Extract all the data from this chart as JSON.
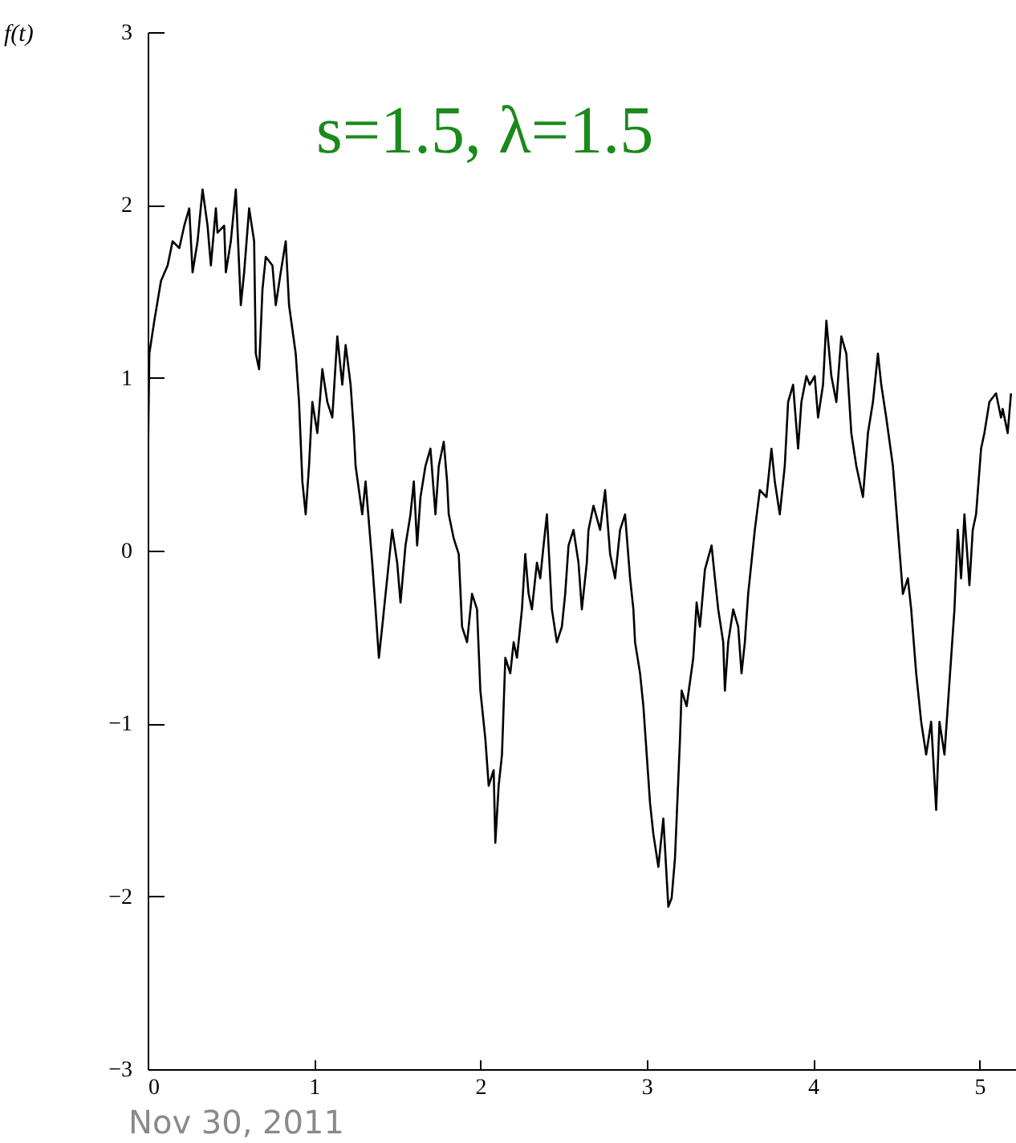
{
  "chart_data": {
    "type": "line",
    "title": "s=1.5, λ=1.5",
    "ylabel": "f(t)",
    "annotations": [
      "Nov 30, 2011"
    ],
    "xlim": [
      0,
      5.22
    ],
    "ylim": [
      -3,
      3
    ],
    "xticks": [
      0,
      1,
      2,
      3,
      4,
      5
    ],
    "yticks": [
      -3,
      -2,
      -1,
      0,
      1,
      2,
      3
    ],
    "x": [
      0,
      0.01,
      0.04,
      0.08,
      0.12,
      0.15,
      0.19,
      0.22,
      0.25,
      0.27,
      0.3,
      0.33,
      0.36,
      0.38,
      0.41,
      0.42,
      0.46,
      0.47,
      0.5,
      0.53,
      0.56,
      0.58,
      0.61,
      0.64,
      0.65,
      0.67,
      0.69,
      0.71,
      0.75,
      0.77,
      0.8,
      0.83,
      0.85,
      0.89,
      0.91,
      0.93,
      0.95,
      0.97,
      0.99,
      1.02,
      1.05,
      1.08,
      1.11,
      1.14,
      1.17,
      1.19,
      1.22,
      1.24,
      1.25,
      1.29,
      1.31,
      1.35,
      1.37,
      1.39,
      1.41,
      1.44,
      1.47,
      1.5,
      1.52,
      1.55,
      1.58,
      1.6,
      1.62,
      1.64,
      1.67,
      1.7,
      1.73,
      1.75,
      1.78,
      1.8,
      1.81,
      1.84,
      1.87,
      1.89,
      1.92,
      1.95,
      1.98,
      2.0,
      2.03,
      2.05,
      2.08,
      2.09,
      2.11,
      2.13,
      2.15,
      2.18,
      2.2,
      2.22,
      2.25,
      2.27,
      2.29,
      2.31,
      2.34,
      2.36,
      2.38,
      2.4,
      2.43,
      2.46,
      2.49,
      2.51,
      2.53,
      2.56,
      2.59,
      2.61,
      2.64,
      2.65,
      2.68,
      2.72,
      2.75,
      2.78,
      2.81,
      2.84,
      2.87,
      2.9,
      2.92,
      2.93,
      2.96,
      2.98,
      3.0,
      3.02,
      3.04,
      3.07,
      3.1,
      3.13,
      3.15,
      3.17,
      3.2,
      3.21,
      3.24,
      3.28,
      3.3,
      3.32,
      3.35,
      3.39,
      3.41,
      3.43,
      3.46,
      3.47,
      3.49,
      3.52,
      3.55,
      3.57,
      3.59,
      3.61,
      3.65,
      3.68,
      3.72,
      3.75,
      3.77,
      3.8,
      3.83,
      3.85,
      3.88,
      3.91,
      3.93,
      3.96,
      3.98,
      4.01,
      4.03,
      4.06,
      4.08,
      4.11,
      4.14,
      4.17,
      4.2,
      4.23,
      4.26,
      4.3,
      4.33,
      4.36,
      4.39,
      4.41,
      4.44,
      4.48,
      4.51,
      4.54,
      4.57,
      4.59,
      4.62,
      4.65,
      4.68,
      4.71,
      4.74,
      4.76,
      4.79,
      4.81,
      4.85,
      4.87,
      4.89,
      4.91,
      4.94,
      4.96,
      4.98,
      5.01,
      5.03,
      5.06,
      5.1,
      5.13,
      5.14,
      5.17,
      5.19
    ],
    "series": [
      {
        "color": "#000000",
        "values": [
          0.4,
          1.14,
          1.33,
          1.56,
          1.65,
          1.79,
          1.75,
          1.88,
          1.98,
          1.61,
          1.79,
          2.09,
          1.88,
          1.65,
          1.98,
          1.84,
          1.88,
          1.61,
          1.79,
          2.09,
          1.42,
          1.61,
          1.98,
          1.79,
          1.14,
          1.05,
          1.51,
          1.7,
          1.65,
          1.42,
          1.61,
          1.79,
          1.42,
          1.14,
          0.86,
          0.4,
          0.21,
          0.49,
          0.86,
          0.68,
          1.05,
          0.86,
          0.77,
          1.24,
          0.96,
          1.19,
          0.96,
          0.68,
          0.49,
          0.21,
          0.4,
          -0.07,
          -0.34,
          -0.62,
          -0.44,
          -0.16,
          0.12,
          -0.07,
          -0.3,
          0.03,
          0.21,
          0.4,
          0.03,
          0.31,
          0.49,
          0.59,
          0.21,
          0.49,
          0.63,
          0.4,
          0.21,
          0.07,
          -0.02,
          -0.44,
          -0.53,
          -0.25,
          -0.34,
          -0.81,
          -1.09,
          -1.36,
          -1.27,
          -1.69,
          -1.36,
          -1.18,
          -0.62,
          -0.71,
          -0.53,
          -0.62,
          -0.34,
          -0.02,
          -0.25,
          -0.34,
          -0.07,
          -0.16,
          0.03,
          0.21,
          -0.34,
          -0.53,
          -0.44,
          -0.25,
          0.03,
          0.12,
          -0.07,
          -0.34,
          -0.07,
          0.12,
          0.26,
          0.12,
          0.35,
          -0.02,
          -0.16,
          0.12,
          0.21,
          -0.16,
          -0.34,
          -0.53,
          -0.71,
          -0.9,
          -1.18,
          -1.46,
          -1.64,
          -1.83,
          -1.55,
          -2.06,
          -2.01,
          -1.78,
          -1.09,
          -0.81,
          -0.9,
          -0.62,
          -0.3,
          -0.44,
          -0.11,
          0.03,
          -0.16,
          -0.34,
          -0.53,
          -0.81,
          -0.53,
          -0.34,
          -0.44,
          -0.71,
          -0.53,
          -0.25,
          0.12,
          0.35,
          0.31,
          0.59,
          0.4,
          0.21,
          0.49,
          0.86,
          0.96,
          0.59,
          0.86,
          1.01,
          0.96,
          1.01,
          0.77,
          0.96,
          1.33,
          1.01,
          0.86,
          1.24,
          1.14,
          0.68,
          0.49,
          0.31,
          0.68,
          0.86,
          1.14,
          0.96,
          0.77,
          0.49,
          0.12,
          -0.25,
          -0.16,
          -0.34,
          -0.71,
          -0.99,
          -1.18,
          -0.99,
          -1.5,
          -0.99,
          -1.18,
          -0.9,
          -0.34,
          0.12,
          -0.16,
          0.21,
          -0.2,
          0.12,
          0.21,
          0.59,
          0.68,
          0.86,
          0.91,
          0.77,
          0.82,
          0.68,
          0.91
        ]
      }
    ]
  }
}
